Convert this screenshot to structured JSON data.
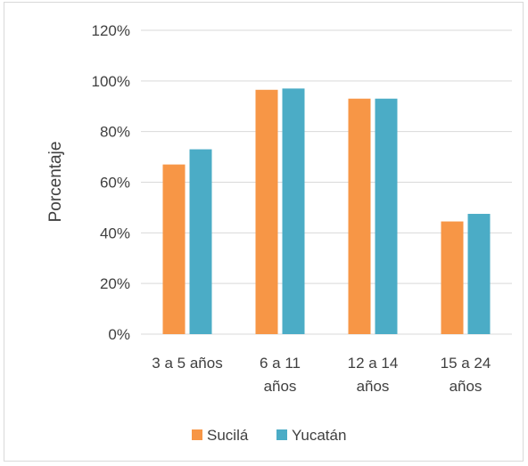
{
  "chart_data": {
    "type": "bar",
    "title": "",
    "xlabel": "",
    "ylabel": "Porcentaje",
    "ylim": [
      0,
      120
    ],
    "yticks": [
      "0%",
      "20%",
      "40%",
      "60%",
      "80%",
      "100%",
      "120%"
    ],
    "ytick_values": [
      0,
      20,
      40,
      60,
      80,
      100,
      120
    ],
    "categories": [
      [
        "3 a 5 años"
      ],
      [
        "6 a 11",
        "años"
      ],
      [
        "12 a 14",
        "años"
      ],
      [
        "15 a  24",
        "años"
      ]
    ],
    "series": [
      {
        "name": "Sucilá",
        "color": "#f79646",
        "values": [
          67,
          96.5,
          93,
          44.5
        ]
      },
      {
        "name": "Yucatán",
        "color": "#4bacc6",
        "values": [
          73,
          97,
          93,
          47.5
        ]
      }
    ],
    "grid": true,
    "legend_position": "bottom"
  }
}
